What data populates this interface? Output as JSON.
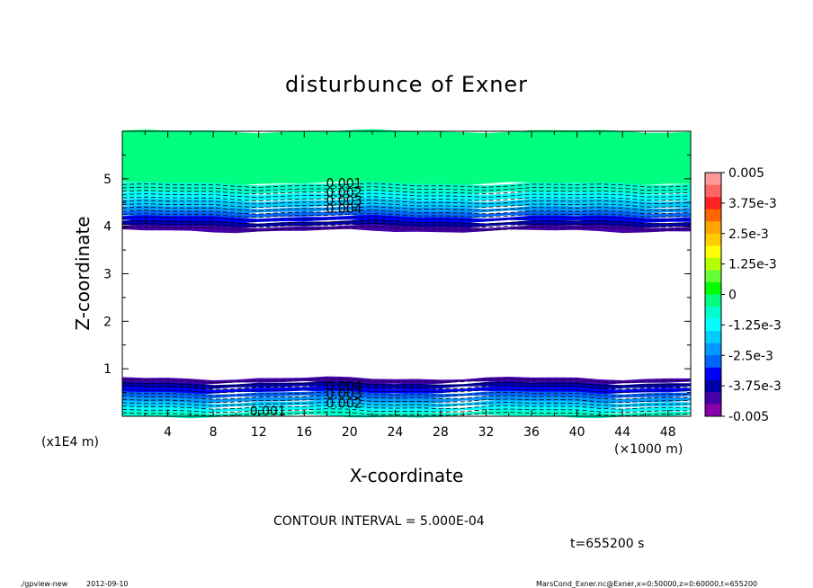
{
  "chart_data": {
    "type": "heatmap",
    "title": "disturbunce of Exner",
    "xlabel": "X-coordinate",
    "ylabel": "Z-coordinate",
    "x_unit": "(×1000 m)",
    "y_unit": "(x1E4 m)",
    "xlim": [
      0,
      50
    ],
    "ylim": [
      0,
      6
    ],
    "x_ticks": [
      "4",
      "8",
      "12",
      "16",
      "20",
      "24",
      "28",
      "32",
      "36",
      "40",
      "44",
      "48"
    ],
    "x_tick_values": [
      4,
      8,
      12,
      16,
      20,
      24,
      28,
      32,
      36,
      40,
      44,
      48
    ],
    "y_ticks": [
      "1",
      "2",
      "3",
      "4",
      "5"
    ],
    "y_tick_values": [
      1,
      2,
      3,
      4,
      5
    ],
    "value_range": [
      -0.005,
      0.005
    ],
    "colorbar_labels": [
      "0.005",
      "3.75e-3",
      "2.5e-3",
      "1.25e-3",
      "0",
      "-1.25e-3",
      "-2.5e-3",
      "-3.75e-3",
      "-0.005"
    ],
    "colorbar_colors": [
      "#ff9999",
      "#ff6666",
      "#ff2222",
      "#ff6600",
      "#ffa500",
      "#ffcc00",
      "#ffff00",
      "#b4ff00",
      "#66ff33",
      "#00ff00",
      "#00ff80",
      "#00ffcc",
      "#00ffff",
      "#00ccff",
      "#0099ff",
      "#0066ff",
      "#0000ff",
      "#0000aa",
      "#4400aa",
      "#8800aa"
    ],
    "upper_band": {
      "z_range": [
        3.9,
        6.0
      ],
      "values": [
        [
          6.0,
          0.0
        ],
        [
          4.9,
          -0.0005
        ],
        [
          4.7,
          -0.001
        ],
        [
          4.55,
          -0.0015
        ],
        [
          4.4,
          -0.002
        ],
        [
          4.3,
          -0.0025
        ],
        [
          4.2,
          -0.003
        ],
        [
          4.1,
          -0.0035
        ],
        [
          4.0,
          -0.004
        ],
        [
          3.9,
          -0.0048
        ]
      ]
    },
    "lower_band": {
      "z_range": [
        0.0,
        0.8
      ],
      "values": [
        [
          0.8,
          -0.0048
        ],
        [
          0.7,
          -0.004
        ],
        [
          0.6,
          -0.0035
        ],
        [
          0.5,
          -0.003
        ],
        [
          0.4,
          -0.0025
        ],
        [
          0.3,
          -0.002
        ],
        [
          0.2,
          -0.0015
        ],
        [
          0.1,
          -0.001
        ],
        [
          0.0,
          -0.0005
        ]
      ]
    },
    "contour_labels": [
      {
        "text": "0.001",
        "x": 19.5,
        "z": 4.82
      },
      {
        "text": "0.002",
        "x": 19.5,
        "z": 4.62
      },
      {
        "text": "0.003",
        "x": 19.5,
        "z": 4.45
      },
      {
        "text": "0.004",
        "x": 19.5,
        "z": 4.28
      },
      {
        "text": "0.004",
        "x": 19.5,
        "z": 0.55
      },
      {
        "text": "0.003",
        "x": 19.5,
        "z": 0.38
      },
      {
        "text": "0.002",
        "x": 19.5,
        "z": 0.18
      },
      {
        "text": "0.001",
        "x": 12.8,
        "z": 0.02
      }
    ]
  },
  "footer": {
    "contour_interval": "CONTOUR INTERVAL = 5.000E-04",
    "time": "t=655200 s",
    "program": "./gpview-new",
    "date": "2012-09-10",
    "source": "MarsCond_Exner.nc@Exner,x=0:50000,z=0:60000,t=655200"
  }
}
